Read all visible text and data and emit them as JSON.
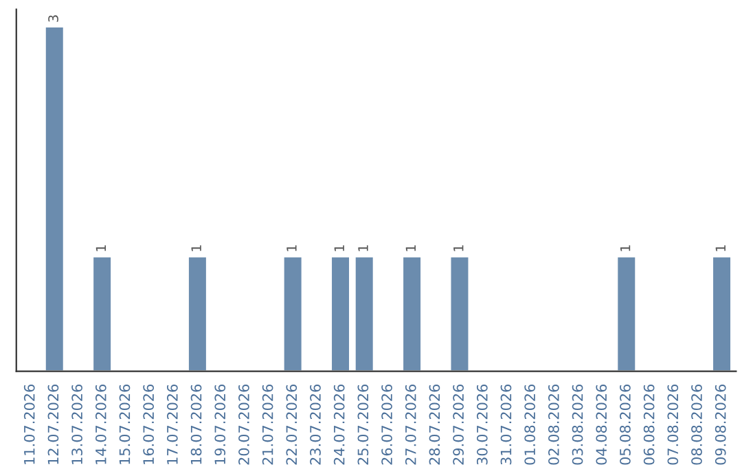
{
  "chart_data": {
    "type": "bar",
    "categories": [
      "11.07.2026",
      "12.07.2026",
      "13.07.2026",
      "14.07.2026",
      "15.07.2026",
      "16.07.2026",
      "17.07.2026",
      "18.07.2026",
      "19.07.2026",
      "20.07.2026",
      "21.07.2026",
      "22.07.2026",
      "23.07.2026",
      "24.07.2026",
      "25.07.2026",
      "26.07.2026",
      "27.07.2026",
      "28.07.2026",
      "29.07.2026",
      "30.07.2026",
      "31.07.2026",
      "01.08.2026",
      "02.08.2026",
      "03.08.2026",
      "04.08.2026",
      "05.08.2026",
      "06.08.2026",
      "07.08.2026",
      "08.08.2026",
      "09.08.2026"
    ],
    "values": [
      null,
      3,
      null,
      1,
      null,
      null,
      null,
      1,
      null,
      null,
      null,
      1,
      null,
      1,
      1,
      null,
      1,
      null,
      1,
      null,
      null,
      null,
      null,
      null,
      null,
      1,
      null,
      null,
      null,
      1
    ],
    "value_labels": [
      null,
      "3",
      null,
      "1",
      null,
      null,
      null,
      "1",
      null,
      null,
      null,
      "1",
      null,
      "1",
      "1",
      null,
      "1",
      null,
      "1",
      null,
      null,
      null,
      null,
      null,
      null,
      "1",
      null,
      null,
      null,
      "1"
    ],
    "color": "#6b8cae",
    "tick_labels": "x",
    "grid": false,
    "legend": false
  }
}
